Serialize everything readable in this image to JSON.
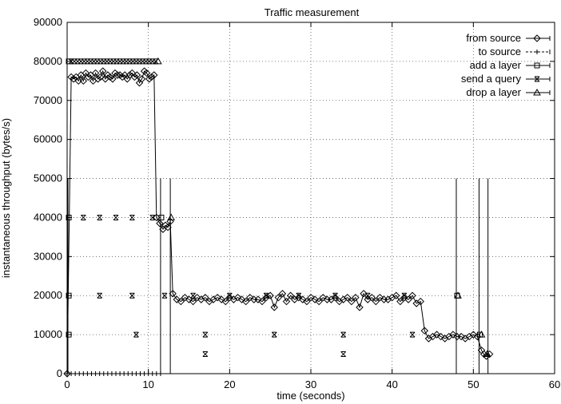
{
  "chart_data": {
    "type": "line",
    "title": "Traffic measurement",
    "xlabel": "time (seconds)",
    "ylabel": "instantaneous throughput (bytes/s)",
    "xlim": [
      0,
      60
    ],
    "ylim": [
      0,
      90000
    ],
    "xticks": [
      0,
      10,
      20,
      30,
      40,
      50,
      60
    ],
    "yticks": [
      0,
      10000,
      20000,
      30000,
      40000,
      50000,
      60000,
      70000,
      80000,
      90000
    ],
    "grid": true,
    "legend_position": "top-right",
    "series": [
      {
        "name": "from source",
        "marker": "diamond",
        "points": [
          [
            0.0,
            0
          ],
          [
            0.5,
            76000
          ],
          [
            0.8,
            75500
          ],
          [
            1.1,
            76000
          ],
          [
            1.4,
            75000
          ],
          [
            1.7,
            76500
          ],
          [
            2.0,
            75000
          ],
          [
            2.3,
            77000
          ],
          [
            2.6,
            76000
          ],
          [
            2.9,
            76500
          ],
          [
            3.2,
            75000
          ],
          [
            3.5,
            77000
          ],
          [
            3.8,
            75500
          ],
          [
            4.1,
            76000
          ],
          [
            4.4,
            77500
          ],
          [
            4.7,
            75500
          ],
          [
            5.0,
            76500
          ],
          [
            5.3,
            76000
          ],
          [
            5.6,
            75500
          ],
          [
            5.9,
            77000
          ],
          [
            6.2,
            76500
          ],
          [
            6.5,
            76500
          ],
          [
            6.8,
            76000
          ],
          [
            7.1,
            76500
          ],
          [
            7.4,
            75500
          ],
          [
            7.7,
            76500
          ],
          [
            8.0,
            77000
          ],
          [
            8.3,
            76000
          ],
          [
            8.6,
            76500
          ],
          [
            8.9,
            74500
          ],
          [
            9.2,
            75500
          ],
          [
            9.5,
            77500
          ],
          [
            9.8,
            77000
          ],
          [
            10.1,
            75500
          ],
          [
            10.4,
            76000
          ],
          [
            10.7,
            76500
          ],
          [
            11.0,
            40000
          ],
          [
            11.4,
            38500
          ],
          [
            11.8,
            37000
          ],
          [
            12.1,
            38000
          ],
          [
            12.4,
            37500
          ],
          [
            12.7,
            39000
          ],
          [
            13.0,
            20500
          ],
          [
            13.5,
            19000
          ],
          [
            14.0,
            18500
          ],
          [
            14.5,
            19500
          ],
          [
            15.0,
            19000
          ],
          [
            15.5,
            18500
          ],
          [
            16.0,
            19500
          ],
          [
            16.5,
            19000
          ],
          [
            17.0,
            19500
          ],
          [
            17.5,
            18500
          ],
          [
            18.0,
            19000
          ],
          [
            18.5,
            19500
          ],
          [
            19.0,
            19000
          ],
          [
            19.5,
            18500
          ],
          [
            20.0,
            19500
          ],
          [
            20.5,
            19000
          ],
          [
            21.0,
            19500
          ],
          [
            21.5,
            19000
          ],
          [
            22.0,
            18500
          ],
          [
            22.5,
            19500
          ],
          [
            23.0,
            19000
          ],
          [
            23.5,
            19000
          ],
          [
            24.0,
            18500
          ],
          [
            24.5,
            19500
          ],
          [
            25.0,
            20000
          ],
          [
            25.5,
            17000
          ],
          [
            26.0,
            19500
          ],
          [
            26.5,
            20500
          ],
          [
            27.0,
            18500
          ],
          [
            27.5,
            20000
          ],
          [
            28.0,
            19000
          ],
          [
            28.5,
            19500
          ],
          [
            29.0,
            19000
          ],
          [
            29.5,
            18500
          ],
          [
            30.0,
            19500
          ],
          [
            30.5,
            19000
          ],
          [
            31.0,
            18500
          ],
          [
            31.5,
            19500
          ],
          [
            32.0,
            19000
          ],
          [
            32.5,
            19000
          ],
          [
            33.0,
            19500
          ],
          [
            33.5,
            18500
          ],
          [
            34.0,
            19000
          ],
          [
            34.5,
            19500
          ],
          [
            35.0,
            18500
          ],
          [
            35.5,
            19500
          ],
          [
            36.0,
            17000
          ],
          [
            36.5,
            20500
          ],
          [
            37.0,
            19000
          ],
          [
            37.5,
            19500
          ],
          [
            38.0,
            18500
          ],
          [
            38.5,
            19500
          ],
          [
            39.0,
            19000
          ],
          [
            39.5,
            19000
          ],
          [
            40.0,
            19500
          ],
          [
            40.5,
            20000
          ],
          [
            41.0,
            18500
          ],
          [
            41.5,
            19500
          ],
          [
            42.0,
            19000
          ],
          [
            42.5,
            20000
          ],
          [
            43.0,
            18000
          ],
          [
            43.5,
            18500
          ],
          [
            44.0,
            11000
          ],
          [
            44.5,
            9000
          ],
          [
            45.0,
            9500
          ],
          [
            45.5,
            10000
          ],
          [
            46.0,
            9500
          ],
          [
            46.5,
            9000
          ],
          [
            47.0,
            9500
          ],
          [
            47.5,
            10000
          ],
          [
            48.0,
            9500
          ],
          [
            48.5,
            9500
          ],
          [
            49.0,
            9000
          ],
          [
            49.5,
            9500
          ],
          [
            50.0,
            10000
          ],
          [
            50.5,
            9500
          ],
          [
            51.0,
            6000
          ],
          [
            51.3,
            5000
          ],
          [
            51.6,
            4500
          ],
          [
            52.0,
            5000
          ]
        ]
      },
      {
        "name": "to source",
        "marker": "plus",
        "points": [
          [
            0.0,
            0
          ],
          [
            0.5,
            0
          ],
          [
            1.0,
            0
          ],
          [
            1.5,
            0
          ],
          [
            2.0,
            0
          ],
          [
            2.5,
            0
          ],
          [
            3.0,
            0
          ],
          [
            3.5,
            0
          ],
          [
            4.0,
            0
          ],
          [
            4.5,
            0
          ],
          [
            5.0,
            0
          ],
          [
            5.5,
            0
          ],
          [
            6.0,
            0
          ],
          [
            6.5,
            0
          ],
          [
            7.0,
            0
          ],
          [
            7.5,
            0
          ],
          [
            8.0,
            0
          ],
          [
            8.5,
            0
          ],
          [
            9.0,
            0
          ],
          [
            9.5,
            0
          ],
          [
            10.0,
            0
          ],
          [
            10.5,
            0
          ],
          [
            11.0,
            0
          ],
          [
            11.5,
            0
          ]
        ]
      },
      {
        "name": "add a layer",
        "marker": "square",
        "points": [
          [
            0.2,
            10000
          ],
          [
            0.2,
            20000
          ],
          [
            0.2,
            40000
          ],
          [
            0.2,
            80000
          ],
          [
            11.6,
            40000
          ],
          [
            48.0,
            20000
          ],
          [
            50.8,
            10000
          ]
        ]
      },
      {
        "name": "send a query",
        "marker": "cross",
        "points": [
          [
            0.5,
            80000
          ],
          [
            0.9,
            80000
          ],
          [
            1.3,
            80000
          ],
          [
            1.7,
            80000
          ],
          [
            2.1,
            80000
          ],
          [
            2.5,
            80000
          ],
          [
            2.9,
            80000
          ],
          [
            3.3,
            80000
          ],
          [
            3.7,
            80000
          ],
          [
            4.1,
            80000
          ],
          [
            4.5,
            80000
          ],
          [
            4.9,
            80000
          ],
          [
            5.3,
            80000
          ],
          [
            5.7,
            80000
          ],
          [
            6.1,
            80000
          ],
          [
            6.5,
            80000
          ],
          [
            6.9,
            80000
          ],
          [
            7.3,
            80000
          ],
          [
            7.7,
            80000
          ],
          [
            8.1,
            80000
          ],
          [
            8.5,
            80000
          ],
          [
            8.9,
            80000
          ],
          [
            9.3,
            80000
          ],
          [
            9.7,
            80000
          ],
          [
            10.1,
            80000
          ],
          [
            10.5,
            80000
          ],
          [
            10.9,
            80000
          ],
          [
            2.0,
            40000
          ],
          [
            4.0,
            40000
          ],
          [
            6.0,
            40000
          ],
          [
            8.0,
            40000
          ],
          [
            10.5,
            40000
          ],
          [
            4.0,
            20000
          ],
          [
            8.0,
            20000
          ],
          [
            12.0,
            20000
          ],
          [
            15.5,
            20000
          ],
          [
            20.0,
            20000
          ],
          [
            24.5,
            20000
          ],
          [
            28.5,
            20000
          ],
          [
            33.0,
            20000
          ],
          [
            37.0,
            20000
          ],
          [
            41.5,
            20000
          ],
          [
            8.5,
            10000
          ],
          [
            17.0,
            10000
          ],
          [
            25.5,
            10000
          ],
          [
            34.0,
            10000
          ],
          [
            42.5,
            10000
          ],
          [
            17.0,
            5000
          ],
          [
            34.0,
            5000
          ]
        ]
      },
      {
        "name": "drop a layer",
        "marker": "triangle",
        "points": [
          [
            11.2,
            80000
          ],
          [
            12.8,
            40000
          ],
          [
            48.1,
            20000
          ],
          [
            51.0,
            10000
          ],
          [
            51.7,
            5000
          ]
        ]
      }
    ],
    "vertical_spikes": [
      {
        "x": 0.1,
        "y": 50000
      },
      {
        "x": 11.5,
        "y": 50000
      },
      {
        "x": 12.7,
        "y": 50000
      },
      {
        "x": 47.9,
        "y": 50000
      },
      {
        "x": 50.7,
        "y": 50000
      },
      {
        "x": 51.8,
        "y": 50000
      }
    ]
  }
}
